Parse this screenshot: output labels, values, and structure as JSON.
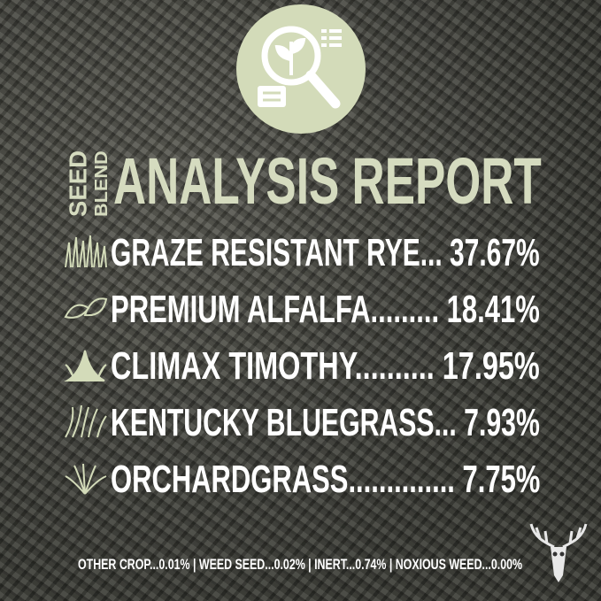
{
  "title": {
    "seed": "SEED",
    "blend": "BLEND",
    "main": "ANALYSIS REPORT"
  },
  "colors": {
    "accent": "#d3dbb9",
    "text": "#ffffff",
    "badge_icon": "#ffffff"
  },
  "badge_icon": "magnifier-plant-document-icon",
  "rows": [
    {
      "icon": "rye-grass-icon",
      "label": "GRAZE RESISTANT RYE... 37.67%"
    },
    {
      "icon": "alfalfa-leaf-icon",
      "label": "PREMIUM ALFALFA......... 18.41%"
    },
    {
      "icon": "timothy-grass-icon",
      "label": "CLIMAX TIMOTHY.......... 17.95%"
    },
    {
      "icon": "bluegrass-icon",
      "label": "KENTUCKY BLUEGRASS... 7.93%"
    },
    {
      "icon": "orchardgrass-icon",
      "label": "ORCHARDGRASS.............. 7.75%"
    }
  ],
  "footer": "OTHER CROP...0.01%  |  WEED SEED...0.02%  |  INERT...0.74%  |  NOXIOUS WEED...0.00%",
  "logo": "deer-skull-logo"
}
